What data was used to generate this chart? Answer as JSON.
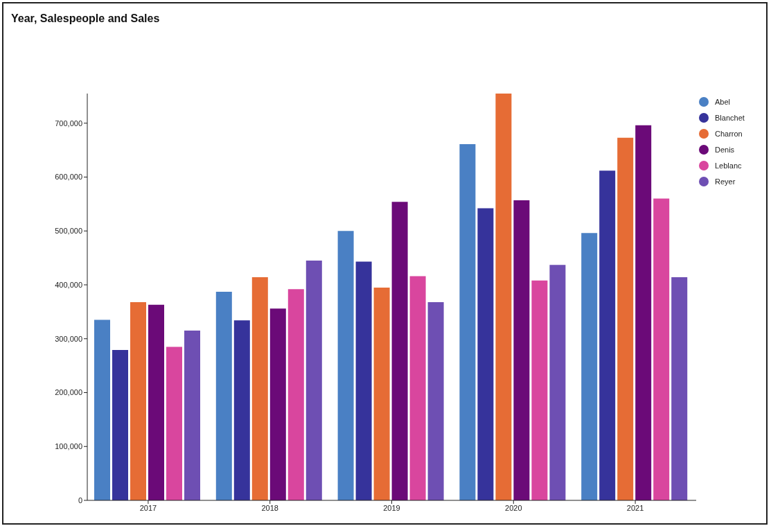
{
  "chart_data": {
    "type": "bar",
    "title": "Year, Salespeople and Sales",
    "categories": [
      "2017",
      "2018",
      "2019",
      "2020",
      "2021"
    ],
    "series": [
      {
        "name": "Abel",
        "color": "#4a80c4",
        "values": [
          335000,
          387000,
          500000,
          661000,
          496000
        ]
      },
      {
        "name": "Blanchet",
        "color": "#36339b",
        "values": [
          279000,
          334000,
          443000,
          542000,
          612000
        ]
      },
      {
        "name": "Charron",
        "color": "#e66c35",
        "values": [
          368000,
          414000,
          395000,
          755000,
          673000
        ]
      },
      {
        "name": "Denis",
        "color": "#6b0a78",
        "values": [
          363000,
          356000,
          554000,
          557000,
          696000
        ]
      },
      {
        "name": "Leblanc",
        "color": "#d9469e",
        "values": [
          285000,
          392000,
          416000,
          408000,
          560000
        ]
      },
      {
        "name": "Reyer",
        "color": "#6e4fb3",
        "values": [
          315000,
          445000,
          368000,
          437000,
          414000
        ]
      }
    ],
    "ylim": [
      0,
      755000
    ],
    "yticks": [
      0,
      {
        "value": 100000,
        "label": "100,000"
      },
      {
        "value": 200000,
        "label": "200,000"
      },
      {
        "value": 300000,
        "label": "300,000"
      },
      {
        "value": 400000,
        "label": "400,000"
      },
      {
        "value": 500000,
        "label": "500,000"
      },
      {
        "value": 600000,
        "label": "600,000"
      },
      {
        "value": 700000,
        "label": "700,000"
      }
    ],
    "legend": "top right"
  }
}
